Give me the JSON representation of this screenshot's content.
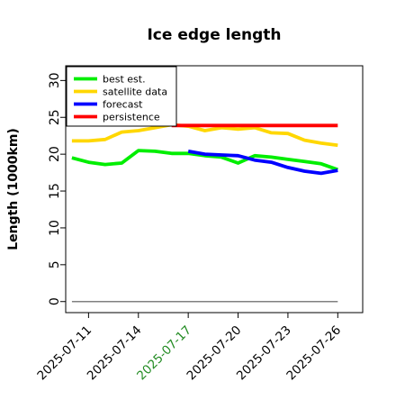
{
  "chart_data": {
    "type": "line",
    "title": "Ice edge length",
    "xlabel": "",
    "ylabel": "Length (1000km)",
    "x_start": "2025-07-10",
    "x_end": "2025-07-26",
    "xlim": [
      "2025-07-09T15:00",
      "2025-07-27T12:00"
    ],
    "ylim": [
      -1.5,
      32
    ],
    "yticks": [
      0,
      5,
      10,
      15,
      20,
      25,
      30
    ],
    "xticks": [
      "2025-07-11",
      "2025-07-14",
      "2025-07-17",
      "2025-07-20",
      "2025-07-23",
      "2025-07-26"
    ],
    "highlight_tick": "2025-07-17",
    "highlight_color": "#228b22",
    "grid": false,
    "legend_position": "top-left",
    "baseline": {
      "value": 0,
      "x_from": "2025-07-10",
      "x_to": "2025-07-26",
      "color": "#808080"
    },
    "series": [
      {
        "name": "best est.",
        "color": "#00ee00",
        "x": [
          "2025-07-10",
          "2025-07-11",
          "2025-07-12",
          "2025-07-13",
          "2025-07-14",
          "2025-07-15",
          "2025-07-16",
          "2025-07-17",
          "2025-07-18",
          "2025-07-19",
          "2025-07-20",
          "2025-07-21",
          "2025-07-22",
          "2025-07-23",
          "2025-07-24",
          "2025-07-25",
          "2025-07-26"
        ],
        "values": [
          19.5,
          18.9,
          18.6,
          18.8,
          20.5,
          20.4,
          20.1,
          20.1,
          19.8,
          19.6,
          18.8,
          19.8,
          19.6,
          19.3,
          19.0,
          18.7,
          17.9
        ]
      },
      {
        "name": "satellite data",
        "color": "#ffd700",
        "x": [
          "2025-07-10",
          "2025-07-11",
          "2025-07-12",
          "2025-07-13",
          "2025-07-14",
          "2025-07-15",
          "2025-07-16",
          "2025-07-17",
          "2025-07-18",
          "2025-07-19",
          "2025-07-20",
          "2025-07-21",
          "2025-07-22",
          "2025-07-23",
          "2025-07-24",
          "2025-07-25",
          "2025-07-26"
        ],
        "values": [
          21.8,
          21.8,
          22.0,
          23.0,
          23.2,
          23.6,
          24.0,
          23.8,
          23.2,
          23.6,
          23.4,
          23.6,
          22.9,
          22.8,
          21.9,
          21.5,
          21.2
        ]
      },
      {
        "name": "forecast",
        "color": "#0000ff",
        "x": [
          "2025-07-17",
          "2025-07-18",
          "2025-07-19",
          "2025-07-20",
          "2025-07-21",
          "2025-07-22",
          "2025-07-23",
          "2025-07-24",
          "2025-07-25",
          "2025-07-26"
        ],
        "values": [
          20.4,
          20.0,
          19.9,
          19.8,
          19.2,
          18.9,
          18.2,
          17.7,
          17.4,
          17.8
        ]
      },
      {
        "name": "persistence",
        "color": "#ff0000",
        "x": [
          "2025-07-16",
          "2025-07-26"
        ],
        "values": [
          23.9,
          23.9
        ]
      }
    ]
  }
}
